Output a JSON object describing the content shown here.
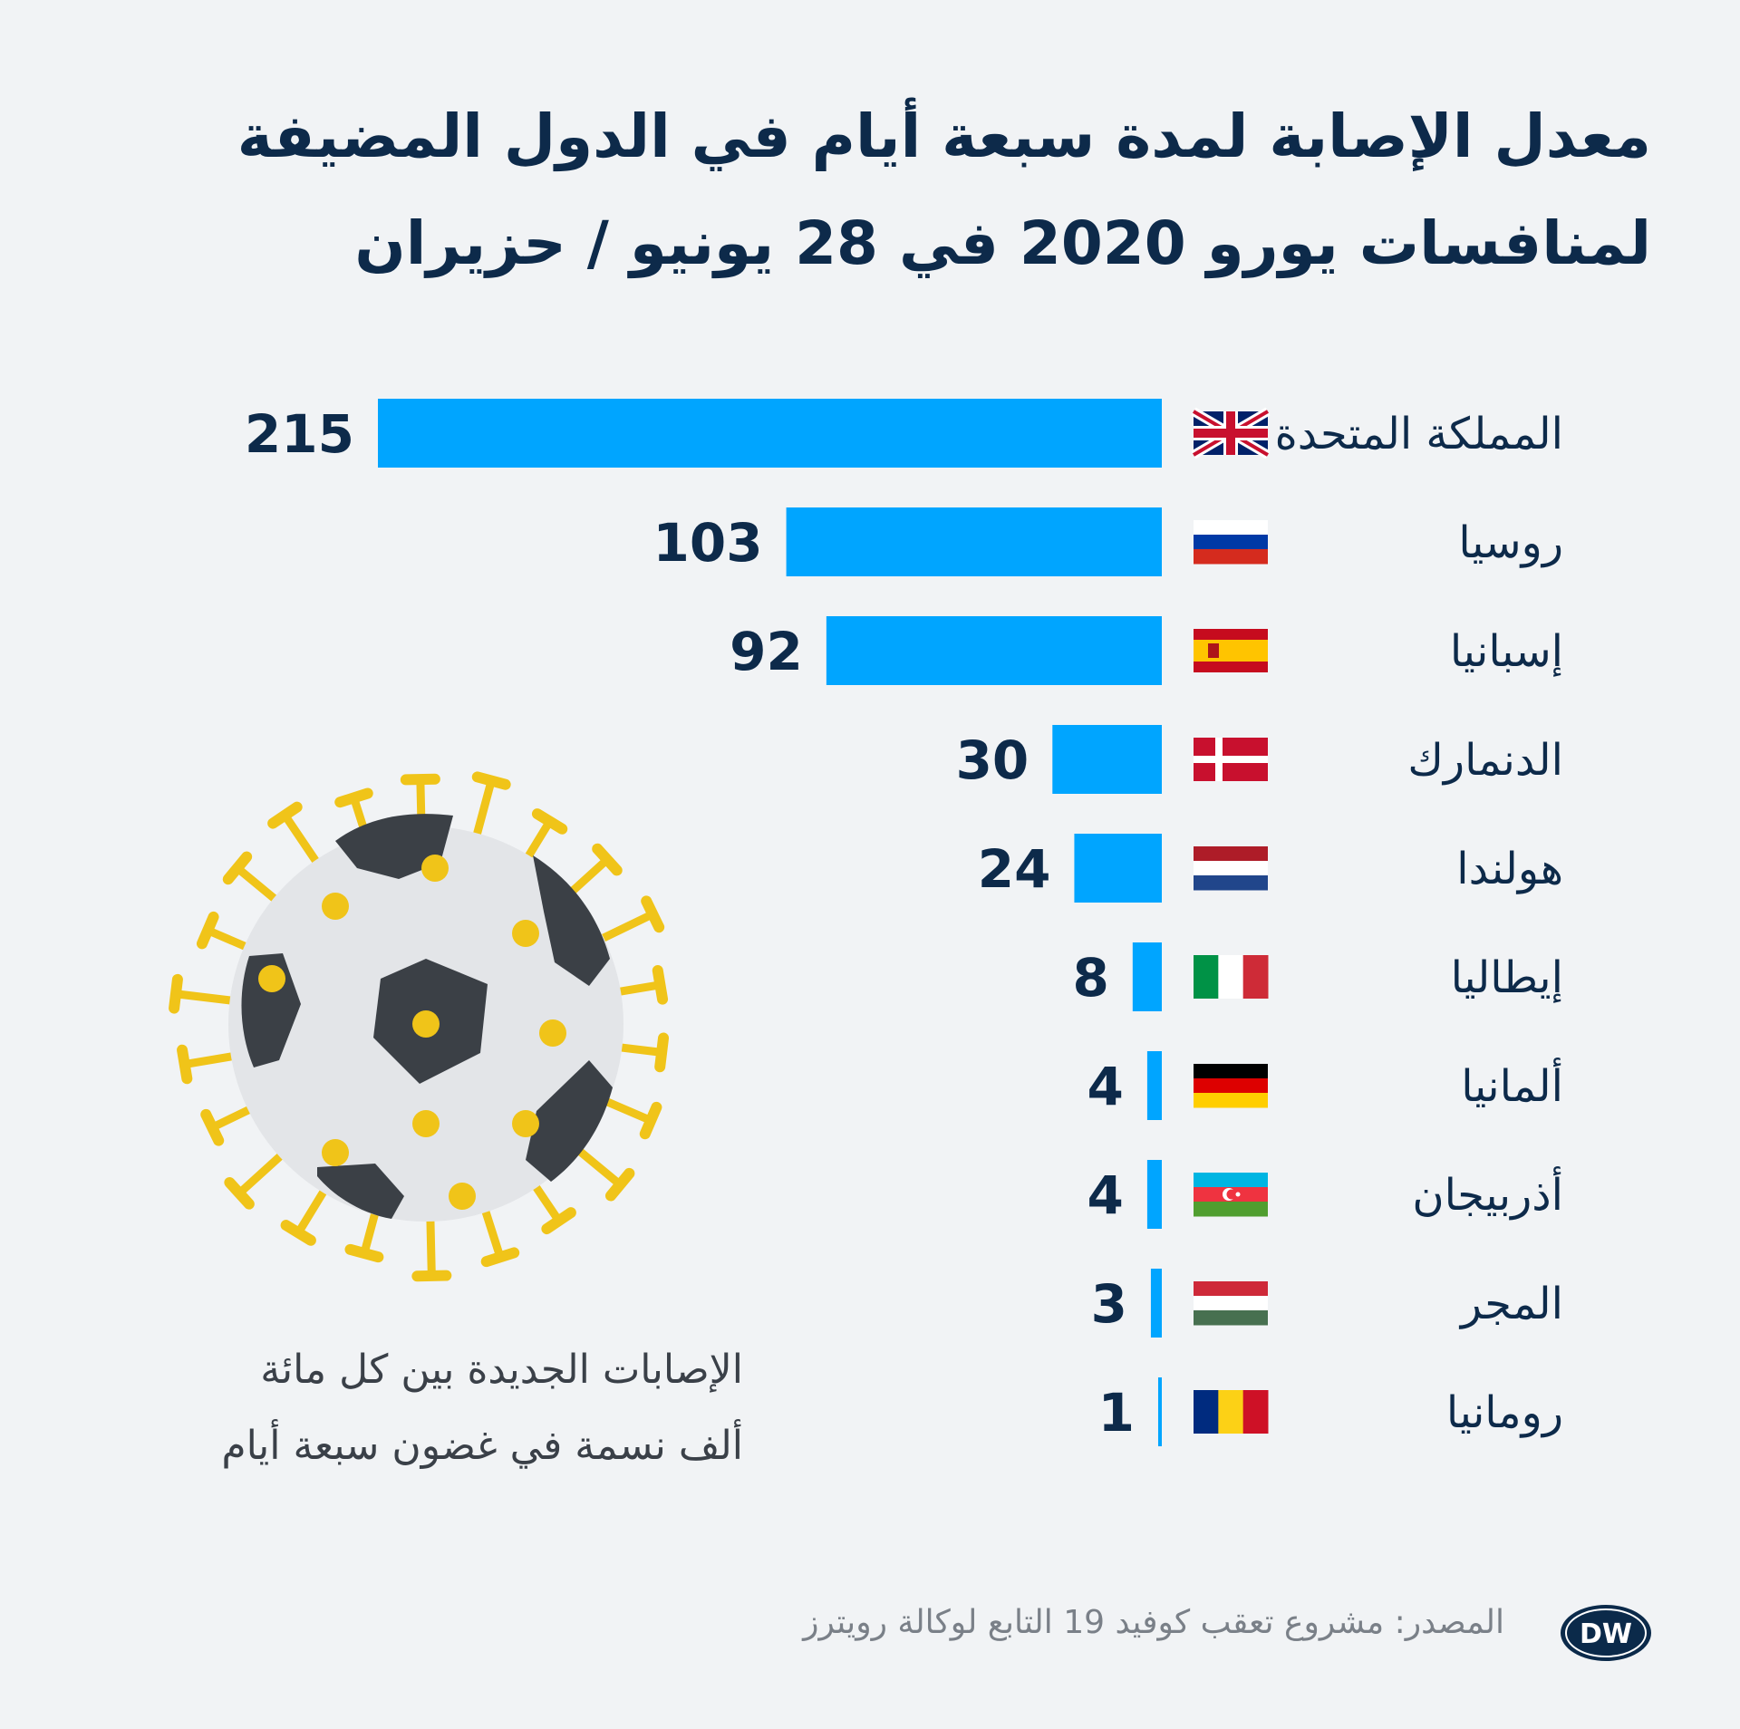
{
  "title": {
    "line1": "معدل الإصابة لمدة سبعة أيام في الدول المضيفة",
    "line2": "لمنافسات يورو 2020 في 28 يونيو / حزيران"
  },
  "caption": {
    "line1": "الإصابات الجديدة بين كل مائة",
    "line2": "ألف نسمة في غضون سبعة أيام"
  },
  "source": "المصدر: مشروع تعقب كوفيد 19 التابع لوكالة رويترز",
  "logo_text": "DW",
  "colors": {
    "bar": "#00a5ff",
    "text": "#0d2a4a",
    "background": "#f1f3f5",
    "virus": "#f0c419",
    "ball_panels": "#3b4046",
    "ball": "#e3e5e8"
  },
  "chart_data": {
    "type": "bar",
    "orientation": "horizontal",
    "categories": [
      "المملكة المتحدة",
      "روسيا",
      "إسبانيا",
      "الدنمارك",
      "هولندا",
      "إيطاليا",
      "ألمانيا",
      "أذربيجان",
      "المجر",
      "رومانيا"
    ],
    "flags": [
      "uk",
      "russia",
      "spain",
      "denmark",
      "netherlands",
      "italy",
      "germany",
      "azerbaijan",
      "hungary",
      "romania"
    ],
    "values": [
      215,
      103,
      92,
      30,
      24,
      8,
      4,
      4,
      3,
      1
    ],
    "title": "معدل الإصابة لمدة سبعة أيام في الدول المضيفة لمنافسات يورو 2020 في 28 يونيو / حزيران",
    "xlim": [
      0,
      215
    ],
    "grid": false,
    "legend": "none"
  }
}
